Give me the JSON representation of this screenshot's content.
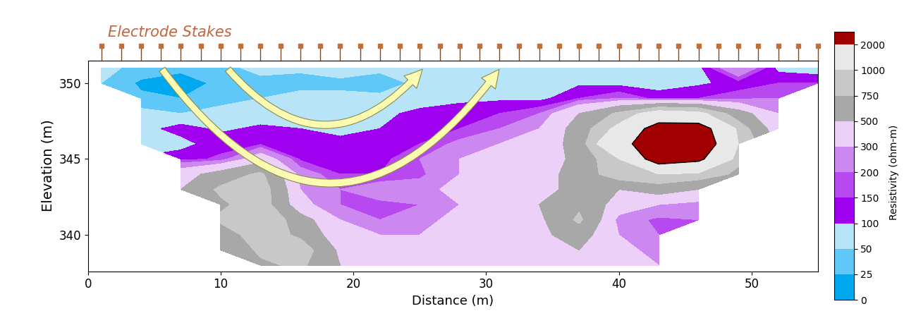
{
  "chart_data": {
    "type": "contour",
    "xlabel": "Distance (m)",
    "ylabel": "Elevation (m)",
    "xlim": [
      0,
      55
    ],
    "ylim": [
      337.6,
      351.5
    ],
    "xticks": [
      0,
      10,
      20,
      30,
      40,
      50
    ],
    "yticks": [
      340,
      345,
      350
    ],
    "annotations": [
      "Electrode Stakes"
    ],
    "electrodes": [
      1,
      2.5,
      4,
      5.5,
      7,
      8.5,
      10,
      11.5,
      13,
      14.5,
      16,
      17.5,
      19,
      20.5,
      22,
      23.5,
      25,
      26.5,
      28,
      29.5,
      31,
      32.5,
      34,
      35.5,
      37,
      38.5,
      40,
      41.5,
      43,
      44.5,
      46,
      47.5,
      49,
      50.5,
      52,
      53.5,
      55
    ],
    "x": [
      1,
      4,
      7,
      10,
      13,
      16,
      19,
      22,
      25,
      28,
      31,
      34,
      37,
      40,
      43,
      46,
      49,
      52,
      55
    ],
    "y": [
      351,
      350,
      349,
      348,
      347,
      346,
      345,
      344,
      343,
      342,
      341,
      340,
      339,
      338
    ],
    "values": [
      [
        60,
        40,
        30,
        40,
        60,
        60,
        70,
        60,
        60,
        70,
        70,
        80,
        80,
        70,
        60,
        80,
        300,
        80,
        60
      ],
      [
        50,
        20,
        15,
        30,
        40,
        30,
        40,
        30,
        60,
        70,
        80,
        80,
        90,
        80,
        70,
        90,
        120,
        150,
        150
      ],
      [
        null,
        30,
        25,
        40,
        50,
        70,
        60,
        60,
        80,
        90,
        90,
        80,
        150,
        200,
        130,
        150,
        180,
        200,
        null
      ],
      [
        null,
        60,
        50,
        60,
        70,
        90,
        80,
        90,
        110,
        120,
        150,
        200,
        500,
        800,
        1200,
        1100,
        600,
        300,
        null
      ],
      [
        null,
        80,
        120,
        90,
        110,
        100,
        90,
        100,
        130,
        150,
        200,
        300,
        600,
        1100,
        2500,
        2500,
        900,
        350,
        null
      ],
      [
        null,
        60,
        80,
        130,
        140,
        120,
        110,
        110,
        150,
        220,
        300,
        350,
        600,
        1500,
        3000,
        2800,
        1000,
        null,
        null
      ],
      [
        null,
        null,
        130,
        160,
        400,
        140,
        130,
        130,
        200,
        300,
        350,
        400,
        550,
        1000,
        2500,
        2200,
        800,
        null,
        null
      ],
      [
        null,
        null,
        400,
        600,
        800,
        250,
        150,
        150,
        180,
        300,
        350,
        400,
        600,
        900,
        1000,
        900,
        700,
        null,
        null
      ],
      [
        null,
        null,
        500,
        800,
        900,
        300,
        200,
        250,
        250,
        350,
        350,
        450,
        550,
        500,
        600,
        500,
        null,
        null,
        null
      ],
      [
        null,
        null,
        null,
        700,
        900,
        350,
        200,
        180,
        200,
        300,
        350,
        500,
        700,
        400,
        300,
        250,
        null,
        null,
        null
      ],
      [
        null,
        null,
        null,
        800,
        1000,
        600,
        300,
        200,
        250,
        350,
        400,
        450,
        800,
        250,
        180,
        200,
        null,
        null,
        null
      ],
      [
        null,
        null,
        null,
        600,
        900,
        700,
        350,
        300,
        300,
        350,
        400,
        450,
        600,
        300,
        200,
        null,
        null,
        null,
        null
      ],
      [
        null,
        null,
        null,
        500,
        800,
        900,
        450,
        350,
        350,
        350,
        400,
        400,
        500,
        350,
        250,
        null,
        null,
        null,
        null
      ],
      [
        null,
        null,
        null,
        null,
        700,
        800,
        500,
        400,
        400,
        400,
        400,
        400,
        450,
        400,
        300,
        null,
        null,
        null,
        null
      ]
    ],
    "levels": [
      0,
      25,
      50,
      100,
      150,
      200,
      300,
      500,
      750,
      1000,
      2000
    ],
    "colors": [
      "#00a8f0",
      "#60c8f8",
      "#b8e4f8",
      "#a000f0",
      "#b848f0",
      "#cc88f0",
      "#ecd0f8",
      "#a8a8a8",
      "#c8c8c8",
      "#e8e8e8",
      "#a00000"
    ],
    "colorbar_label": "Resistivity (ohm-m)"
  }
}
